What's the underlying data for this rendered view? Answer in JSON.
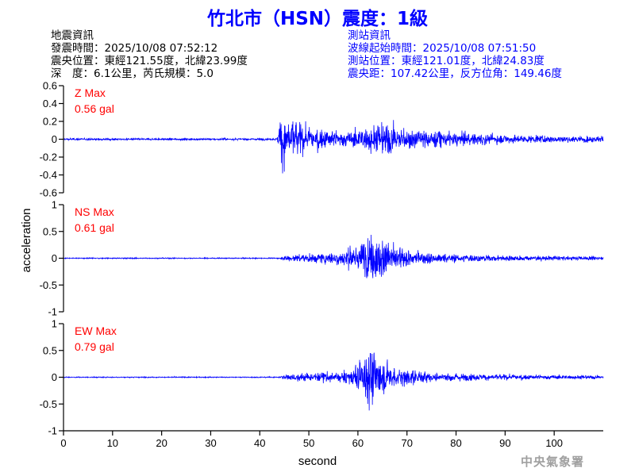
{
  "title": "竹北市（HSN）震度：1級",
  "earthquake_info": {
    "heading": "地震資訊",
    "origin_time": "發震時間：2025/10/08 07:52:12",
    "epicenter": "震央位置：東經121.55度，北緯23.99度",
    "depth_magnitude": "深　度：6.1公里，芮氏規模：5.0"
  },
  "station_info": {
    "heading": "測站資訊",
    "wave_start": "波線起始時間：2025/10/08 07:51:50",
    "location": "測站位置：東經121.01度，北緯24.83度",
    "distance": "震央距：107.42公里，反方位角：149.46度"
  },
  "credit": "中央氣象署",
  "colors": {
    "title": "#0000ff",
    "trace": "#0000ff",
    "max_label": "#ff0000",
    "axis": "#000000"
  },
  "chart_data": {
    "type": "line",
    "xlabel": "second",
    "ylabel": "acceleration",
    "xlim": [
      0,
      110
    ],
    "xticks": [
      0,
      10,
      20,
      30,
      40,
      50,
      60,
      70,
      80,
      90,
      100
    ],
    "panels": [
      {
        "component": "Z",
        "max_label": "Z Max",
        "max_value": "0.56 gal",
        "ylim": [
          -0.6,
          0.6
        ],
        "yticks": [
          -0.6,
          -0.4,
          -0.2,
          0,
          0.2,
          0.4,
          0.6
        ],
        "ytick_labels": [
          "-0.6",
          "-0.4",
          "-0.2",
          "0",
          "0.2",
          "0.4",
          "0.6"
        ],
        "noise": 0.01,
        "envelope": [
          [
            0,
            0.012
          ],
          [
            43.5,
            0.012
          ],
          [
            44.5,
            0.42
          ],
          [
            46,
            0.3
          ],
          [
            50,
            0.16
          ],
          [
            58,
            0.1
          ],
          [
            62,
            0.18
          ],
          [
            66,
            0.24
          ],
          [
            70,
            0.14
          ],
          [
            80,
            0.09
          ],
          [
            90,
            0.06
          ],
          [
            100,
            0.045
          ],
          [
            110,
            0.04
          ]
        ]
      },
      {
        "component": "NS",
        "max_label": "NS Max",
        "max_value": "0.61 gal",
        "ylim": [
          -1,
          1
        ],
        "yticks": [
          -1,
          -0.5,
          0,
          0.5,
          1
        ],
        "ytick_labels": [
          "-1",
          "-0.5",
          "0",
          "0.5",
          "1"
        ],
        "noise": 0.008,
        "envelope": [
          [
            0,
            0.01
          ],
          [
            44,
            0.01
          ],
          [
            45,
            0.06
          ],
          [
            50,
            0.1
          ],
          [
            56,
            0.14
          ],
          [
            60,
            0.32
          ],
          [
            63,
            0.55
          ],
          [
            67,
            0.32
          ],
          [
            72,
            0.14
          ],
          [
            80,
            0.09
          ],
          [
            90,
            0.06
          ],
          [
            100,
            0.05
          ],
          [
            110,
            0.04
          ]
        ]
      },
      {
        "component": "EW",
        "max_label": "EW Max",
        "max_value": "0.79 gal",
        "ylim": [
          -1,
          1
        ],
        "yticks": [
          -1,
          -0.5,
          0,
          0.5,
          1
        ],
        "ytick_labels": [
          "-1",
          "-0.5",
          "0",
          "0.5",
          "1"
        ],
        "noise": 0.008,
        "envelope": [
          [
            0,
            0.01
          ],
          [
            44,
            0.01
          ],
          [
            45,
            0.06
          ],
          [
            50,
            0.1
          ],
          [
            56,
            0.12
          ],
          [
            59,
            0.2
          ],
          [
            61,
            0.45
          ],
          [
            62.5,
            0.7
          ],
          [
            64,
            0.45
          ],
          [
            68,
            0.22
          ],
          [
            75,
            0.11
          ],
          [
            85,
            0.07
          ],
          [
            100,
            0.05
          ],
          [
            110,
            0.04
          ]
        ]
      }
    ]
  }
}
